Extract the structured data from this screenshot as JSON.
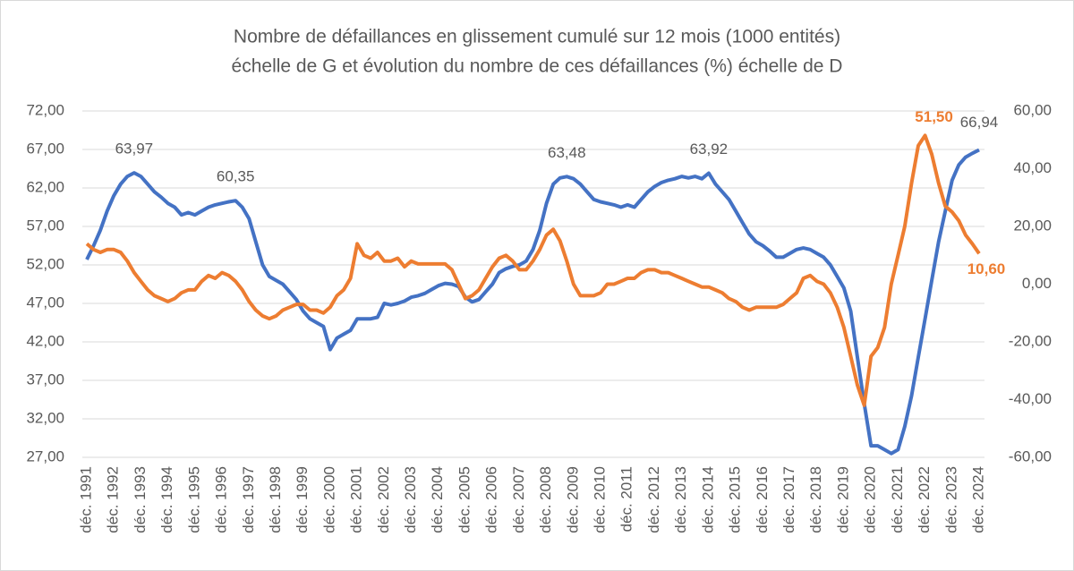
{
  "chart_data": {
    "type": "line",
    "title": "Nombre de défaillances en glissement cumulé sur 12 mois (1000 entités)",
    "subtitle": "échelle de G et évolution du nombre de ces défaillances (%) échelle de D",
    "categories": [
      "déc. 1991",
      null,
      null,
      null,
      "déc. 1992",
      null,
      null,
      null,
      "déc. 1993",
      null,
      null,
      null,
      "déc. 1994",
      null,
      null,
      null,
      "déc. 1995",
      null,
      null,
      null,
      "déc. 1996",
      null,
      null,
      null,
      "déc. 1997",
      null,
      null,
      null,
      "déc. 1998",
      null,
      null,
      null,
      "déc. 1999",
      null,
      null,
      null,
      "déc. 2000",
      null,
      null,
      null,
      "déc. 2001",
      null,
      null,
      null,
      "déc. 2002",
      null,
      null,
      null,
      "déc. 2003",
      null,
      null,
      null,
      "déc. 2004",
      null,
      null,
      null,
      "déc. 2005",
      null,
      null,
      null,
      "déc. 2006",
      null,
      null,
      null,
      "déc. 2007",
      null,
      null,
      null,
      "déc. 2008",
      null,
      null,
      null,
      "déc. 2009",
      null,
      null,
      null,
      "déc. 2010",
      null,
      null,
      null,
      "déc. 2011",
      null,
      null,
      null,
      "déc. 2012",
      null,
      null,
      null,
      "déc. 2013",
      null,
      null,
      null,
      "déc. 2014",
      null,
      null,
      null,
      "déc. 2015",
      null,
      null,
      null,
      "déc. 2016",
      null,
      null,
      null,
      "déc. 2017",
      null,
      null,
      null,
      "déc. 2018",
      null,
      null,
      null,
      "déc. 2019",
      null,
      null,
      null,
      "déc. 2020",
      null,
      null,
      null,
      "déc. 2021",
      null,
      null,
      null,
      "déc. 2022",
      null,
      null,
      null,
      "déc. 2023",
      null,
      null,
      null,
      "déc. 2024"
    ],
    "series": [
      {
        "color": "#4472c4",
        "axis": "y",
        "values": [
          52.7,
          54.5,
          56.5,
          59,
          61,
          62.5,
          63.5,
          63.97,
          63.5,
          62.5,
          61.5,
          60.8,
          60,
          59.5,
          58.5,
          58.8,
          58.5,
          59,
          59.5,
          59.8,
          60,
          60.2,
          60.35,
          59.5,
          58,
          55,
          52,
          50.5,
          50,
          49.5,
          48.5,
          47.5,
          46,
          45,
          44.5,
          44,
          41,
          42.5,
          43,
          43.5,
          45,
          45,
          45,
          45.2,
          47,
          46.8,
          47,
          47.3,
          47.8,
          48,
          48.3,
          48.8,
          49.3,
          49.6,
          49.5,
          49.2,
          47.8,
          47.2,
          47.5,
          48.5,
          49.5,
          51,
          51.5,
          51.8,
          52,
          52.5,
          54,
          56.5,
          60,
          62.5,
          63.3,
          63.48,
          63.2,
          62.5,
          61.5,
          60.5,
          60.2,
          60,
          59.8,
          59.5,
          59.8,
          59.5,
          60.5,
          61.5,
          62.2,
          62.7,
          63,
          63.2,
          63.5,
          63.3,
          63.5,
          63.2,
          63.92,
          62.5,
          61.5,
          60.5,
          59,
          57.5,
          56,
          55,
          54.5,
          53.8,
          53,
          53,
          53.5,
          54,
          54.2,
          54,
          53.5,
          53,
          52,
          50.5,
          49,
          46,
          40,
          34,
          28.5,
          28.5,
          28,
          27.5,
          28,
          31,
          35,
          40,
          45,
          50,
          55,
          59,
          63,
          65,
          66,
          66.5,
          66.94
        ],
        "value_labels": [
          null,
          null,
          null,
          null,
          null,
          null,
          null,
          "63,97",
          null,
          null,
          null,
          null,
          null,
          null,
          null,
          null,
          null,
          null,
          null,
          null,
          null,
          null,
          "60,35",
          null,
          null,
          null,
          null,
          null,
          null,
          null,
          null,
          null,
          null,
          null,
          null,
          null,
          null,
          null,
          null,
          null,
          null,
          null,
          null,
          null,
          null,
          null,
          null,
          null,
          null,
          null,
          null,
          null,
          null,
          null,
          null,
          null,
          null,
          null,
          null,
          null,
          null,
          null,
          null,
          null,
          null,
          null,
          null,
          null,
          null,
          null,
          null,
          "63,48",
          null,
          null,
          null,
          null,
          null,
          null,
          null,
          null,
          null,
          null,
          null,
          null,
          null,
          null,
          null,
          null,
          null,
          null,
          null,
          null,
          "63,92",
          null,
          null,
          null,
          null,
          null,
          null,
          null,
          null,
          null,
          null,
          null,
          null,
          null,
          null,
          null,
          null,
          null,
          null,
          null,
          null,
          null,
          null,
          null,
          null,
          null,
          null,
          null,
          null,
          null,
          null,
          null,
          null,
          null,
          null,
          null,
          null,
          null,
          null,
          null,
          "66,94"
        ]
      },
      {
        "color": "#ed7d31",
        "axis": "y2",
        "values": [
          14,
          12,
          11,
          12,
          12,
          11,
          8,
          4,
          1,
          -2,
          -4,
          -5,
          -6,
          -5,
          -3,
          -2,
          -2,
          1,
          3,
          2,
          4,
          3,
          1,
          -2,
          -6,
          -9,
          -11,
          -12,
          -11,
          -9,
          -8,
          -7,
          -7,
          -9,
          -9,
          -10,
          -8,
          -4,
          -2,
          2,
          14,
          10,
          9,
          11,
          8,
          8,
          9,
          6,
          8,
          7,
          7,
          7,
          7,
          7,
          5,
          0,
          -5,
          -4,
          -2,
          2,
          6,
          9,
          10,
          8,
          5,
          5,
          8,
          12,
          17,
          19,
          15,
          8,
          0,
          -4,
          -4,
          -4,
          -3,
          0,
          0,
          1,
          2,
          2,
          4,
          5,
          5,
          4,
          4,
          3,
          2,
          1,
          0,
          -1,
          -1,
          -2,
          -3,
          -5,
          -6,
          -8,
          -9,
          -8,
          -8,
          -8,
          -8,
          -7,
          -5,
          -3,
          2,
          3,
          1,
          0,
          -3,
          -8,
          -15,
          -25,
          -35,
          -42,
          -25,
          -22,
          -15,
          0,
          10,
          20,
          35,
          48,
          51.5,
          45,
          35,
          27,
          25,
          22,
          17,
          14,
          10.6
        ],
        "value_labels": [
          null,
          null,
          null,
          null,
          null,
          null,
          null,
          null,
          null,
          null,
          null,
          null,
          null,
          null,
          null,
          null,
          null,
          null,
          null,
          null,
          null,
          null,
          null,
          null,
          null,
          null,
          null,
          null,
          null,
          null,
          null,
          null,
          null,
          null,
          null,
          null,
          null,
          null,
          null,
          null,
          null,
          null,
          null,
          null,
          null,
          null,
          null,
          null,
          null,
          null,
          null,
          null,
          null,
          null,
          null,
          null,
          null,
          null,
          null,
          null,
          null,
          null,
          null,
          null,
          null,
          null,
          null,
          null,
          null,
          null,
          null,
          null,
          null,
          null,
          null,
          null,
          null,
          null,
          null,
          null,
          null,
          null,
          null,
          null,
          null,
          null,
          null,
          null,
          null,
          null,
          null,
          null,
          null,
          null,
          null,
          null,
          null,
          null,
          null,
          null,
          null,
          null,
          null,
          null,
          null,
          null,
          null,
          null,
          null,
          null,
          null,
          null,
          null,
          null,
          null,
          null,
          null,
          null,
          null,
          null,
          null,
          null,
          null,
          null,
          "51,50",
          null,
          null,
          null,
          null,
          null,
          null,
          null,
          "10,60"
        ]
      }
    ],
    "ylim": [
      27,
      72
    ],
    "yticks": [
      {
        "value": 27,
        "label": "27,00"
      },
      {
        "value": 32,
        "label": "32,00"
      },
      {
        "value": 37,
        "label": "37,00"
      },
      {
        "value": 42,
        "label": "42,00"
      },
      {
        "value": 47,
        "label": "47,00"
      },
      {
        "value": 52,
        "label": "52,00"
      },
      {
        "value": 57,
        "label": "57,00"
      },
      {
        "value": 62,
        "label": "62,00"
      },
      {
        "value": 67,
        "label": "67,00"
      },
      {
        "value": 72,
        "label": "72,00"
      }
    ],
    "y2lim": [
      -60,
      60
    ],
    "y2ticks": [
      {
        "value": -60,
        "label": "-60,00"
      },
      {
        "value": -40,
        "label": "-40,00"
      },
      {
        "value": -20,
        "label": "-20,00"
      },
      {
        "value": 0,
        "label": "0,00"
      },
      {
        "value": 20,
        "label": "20,00"
      },
      {
        "value": 40,
        "label": "40,00"
      },
      {
        "value": 60,
        "label": "60,00"
      }
    ],
    "grid": true
  }
}
